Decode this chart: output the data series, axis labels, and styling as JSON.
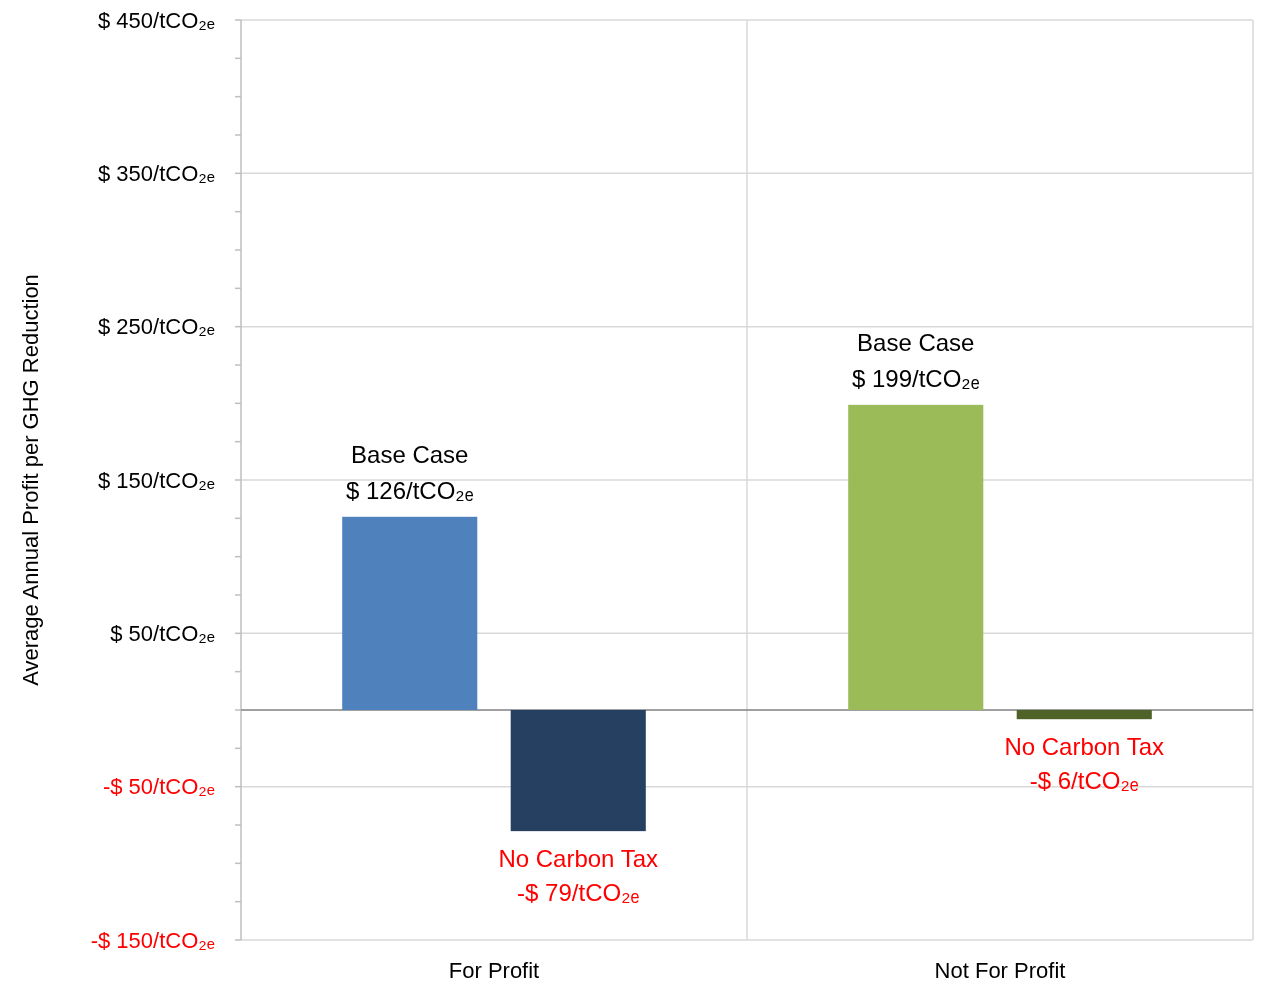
{
  "chart_data": {
    "type": "bar",
    "ylabel": "Average Annual Profit per GHG Reduction",
    "categories": [
      "For Profit",
      "Not For Profit"
    ],
    "series": [
      {
        "name": "Base Case",
        "colors": [
          "#4f81bd",
          "#9bbb59"
        ],
        "values": [
          126,
          199
        ],
        "value_labels": [
          "$ 126/tCO₂ₑ",
          "$ 199/tCO₂ₑ"
        ]
      },
      {
        "name": "No Carbon Tax",
        "colors": [
          "#254061",
          "#4f6228"
        ],
        "values": [
          -79,
          -6
        ],
        "value_labels": [
          "-$ 79/tCO₂ₑ",
          "-$ 6/tCO₂ₑ"
        ]
      }
    ],
    "ylim": [
      -150,
      450
    ],
    "yticks": [
      {
        "value": -150,
        "label": "-$ 150/tCO₂ₑ"
      },
      {
        "value": -125,
        "label": null
      },
      {
        "value": -100,
        "label": null
      },
      {
        "value": -75,
        "label": null
      },
      {
        "value": -50,
        "label": "-$ 50/tCO₂ₑ"
      },
      {
        "value": -25,
        "label": null
      },
      {
        "value": 0,
        "label": null
      },
      {
        "value": 25,
        "label": null
      },
      {
        "value": 50,
        "label": "$ 50/tCO₂ₑ"
      },
      {
        "value": 75,
        "label": null
      },
      {
        "value": 100,
        "label": null
      },
      {
        "value": 125,
        "label": null
      },
      {
        "value": 150,
        "label": "$ 150/tCO₂ₑ"
      },
      {
        "value": 175,
        "label": null
      },
      {
        "value": 200,
        "label": null
      },
      {
        "value": 225,
        "label": null
      },
      {
        "value": 250,
        "label": "$ 250/tCO₂ₑ"
      },
      {
        "value": 275,
        "label": null
      },
      {
        "value": 300,
        "label": null
      },
      {
        "value": 325,
        "label": null
      },
      {
        "value": 350,
        "label": "$ 350/tCO₂ₑ"
      },
      {
        "value": 375,
        "label": null
      },
      {
        "value": 400,
        "label": null
      },
      {
        "value": 425,
        "label": null
      },
      {
        "value": 450,
        "label": "$ 450/tCO₂ₑ"
      }
    ],
    "grid": true
  }
}
